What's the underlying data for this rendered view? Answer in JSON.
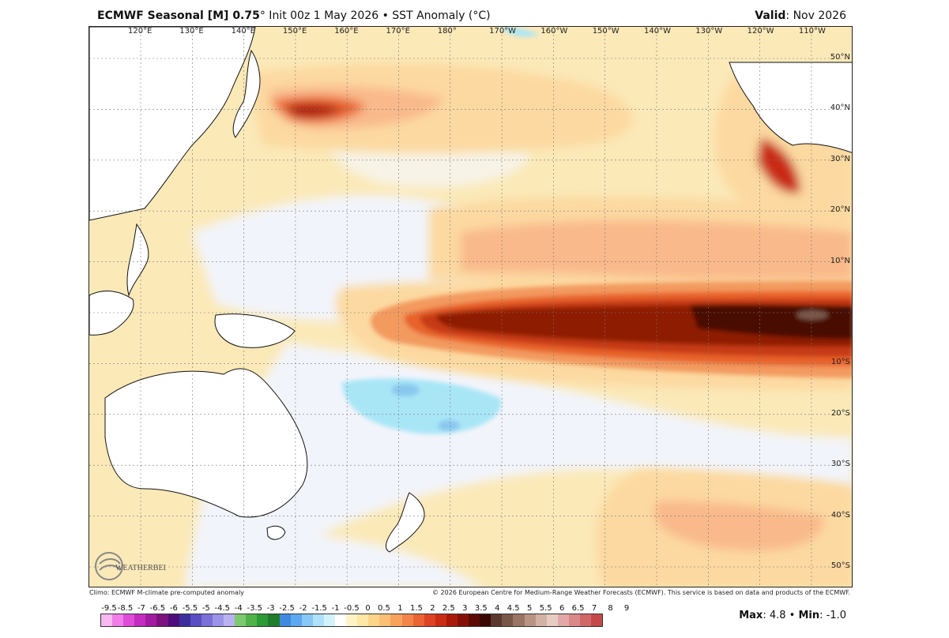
{
  "header": {
    "title_bold": "ECMWF Seasonal [M] 0.75",
    "title_rest": "° Init 00z 1 May 2026 • SST Anomaly (°C)",
    "valid_label": "Valid",
    "valid_value": ": Nov 2026"
  },
  "map": {
    "lon_labels": [
      "120°E",
      "130°E",
      "140°E",
      "150°E",
      "160°E",
      "170°E",
      "180°",
      "170°W",
      "160°W",
      "150°W",
      "140°W",
      "130°W",
      "120°W",
      "110°W"
    ],
    "lat_labels": [
      "50°N",
      "40°N",
      "30°N",
      "20°N",
      "10°N",
      "0°",
      "10°S",
      "20°S",
      "30°S",
      "40°S",
      "50°S"
    ],
    "colors": {
      "ocean_pale": "#f2f4fb",
      "warm1": "#fbe9b8",
      "warm2": "#fcd9a0",
      "warm3": "#f9b98a",
      "warm4": "#f39a5e",
      "hot1": "#e8622b",
      "hot2": "#c63a12",
      "hot3": "#8e1b05",
      "hot4": "#4a0f05",
      "cool": "#a8e6f6",
      "cooler": "#89c7ef",
      "land": "#ffffff"
    }
  },
  "footer": {
    "left": "Climo: ECMWF M-climate pre-computed anomaly",
    "right": "© 2026 European Centre for Medium-Range Weather Forecasts (ECMWF). This service is based on data and products of the ECMWF."
  },
  "colorbar": {
    "labels": [
      "-9.5",
      "-8.5",
      "-7",
      "-6.5",
      "-6",
      "-5.5",
      "-5",
      "-4.5",
      "-4",
      "-3.5",
      "-3",
      "-2.5",
      "-2",
      "-1.5",
      "-1",
      "-0.5",
      "0",
      "0.5",
      "1",
      "1.5",
      "2",
      "2.5",
      "3",
      "3.5",
      "4",
      "4.5",
      "5",
      "5.5",
      "6",
      "6.5",
      "7",
      "8",
      "9"
    ],
    "colors": [
      "#f8b8f0",
      "#f07de8",
      "#e04bd8",
      "#c42bc0",
      "#a21aa0",
      "#7c117e",
      "#4e0b7a",
      "#3c2f9c",
      "#5a4fc2",
      "#7a70d8",
      "#9c94e6",
      "#b9b2f0",
      "#7ec870",
      "#4fb34a",
      "#2c9a36",
      "#1f7d2c",
      "#3f8ae0",
      "#5ea8f0",
      "#88c7f6",
      "#afe2fa",
      "#d4f2fb",
      "#ffffff",
      "#fff4c8",
      "#fde8a6",
      "#fcd58a",
      "#fbbf76",
      "#f8a25e",
      "#f3854a",
      "#ea6436",
      "#dc4424",
      "#c92c14",
      "#a8190a",
      "#861008",
      "#5c0a05",
      "#3a0704",
      "#5a3a30",
      "#7a5648",
      "#9a7464",
      "#b89484",
      "#d2b2a4",
      "#e6ccc2",
      "#e2a8a8",
      "#da8888",
      "#d06868",
      "#c44a4a"
    ],
    "max_label": "Max",
    "max_value": ": 4.8 •",
    "min_label": "Min",
    "min_value": ": -1.0"
  },
  "logo": {
    "text": "WEATHERBELL"
  }
}
